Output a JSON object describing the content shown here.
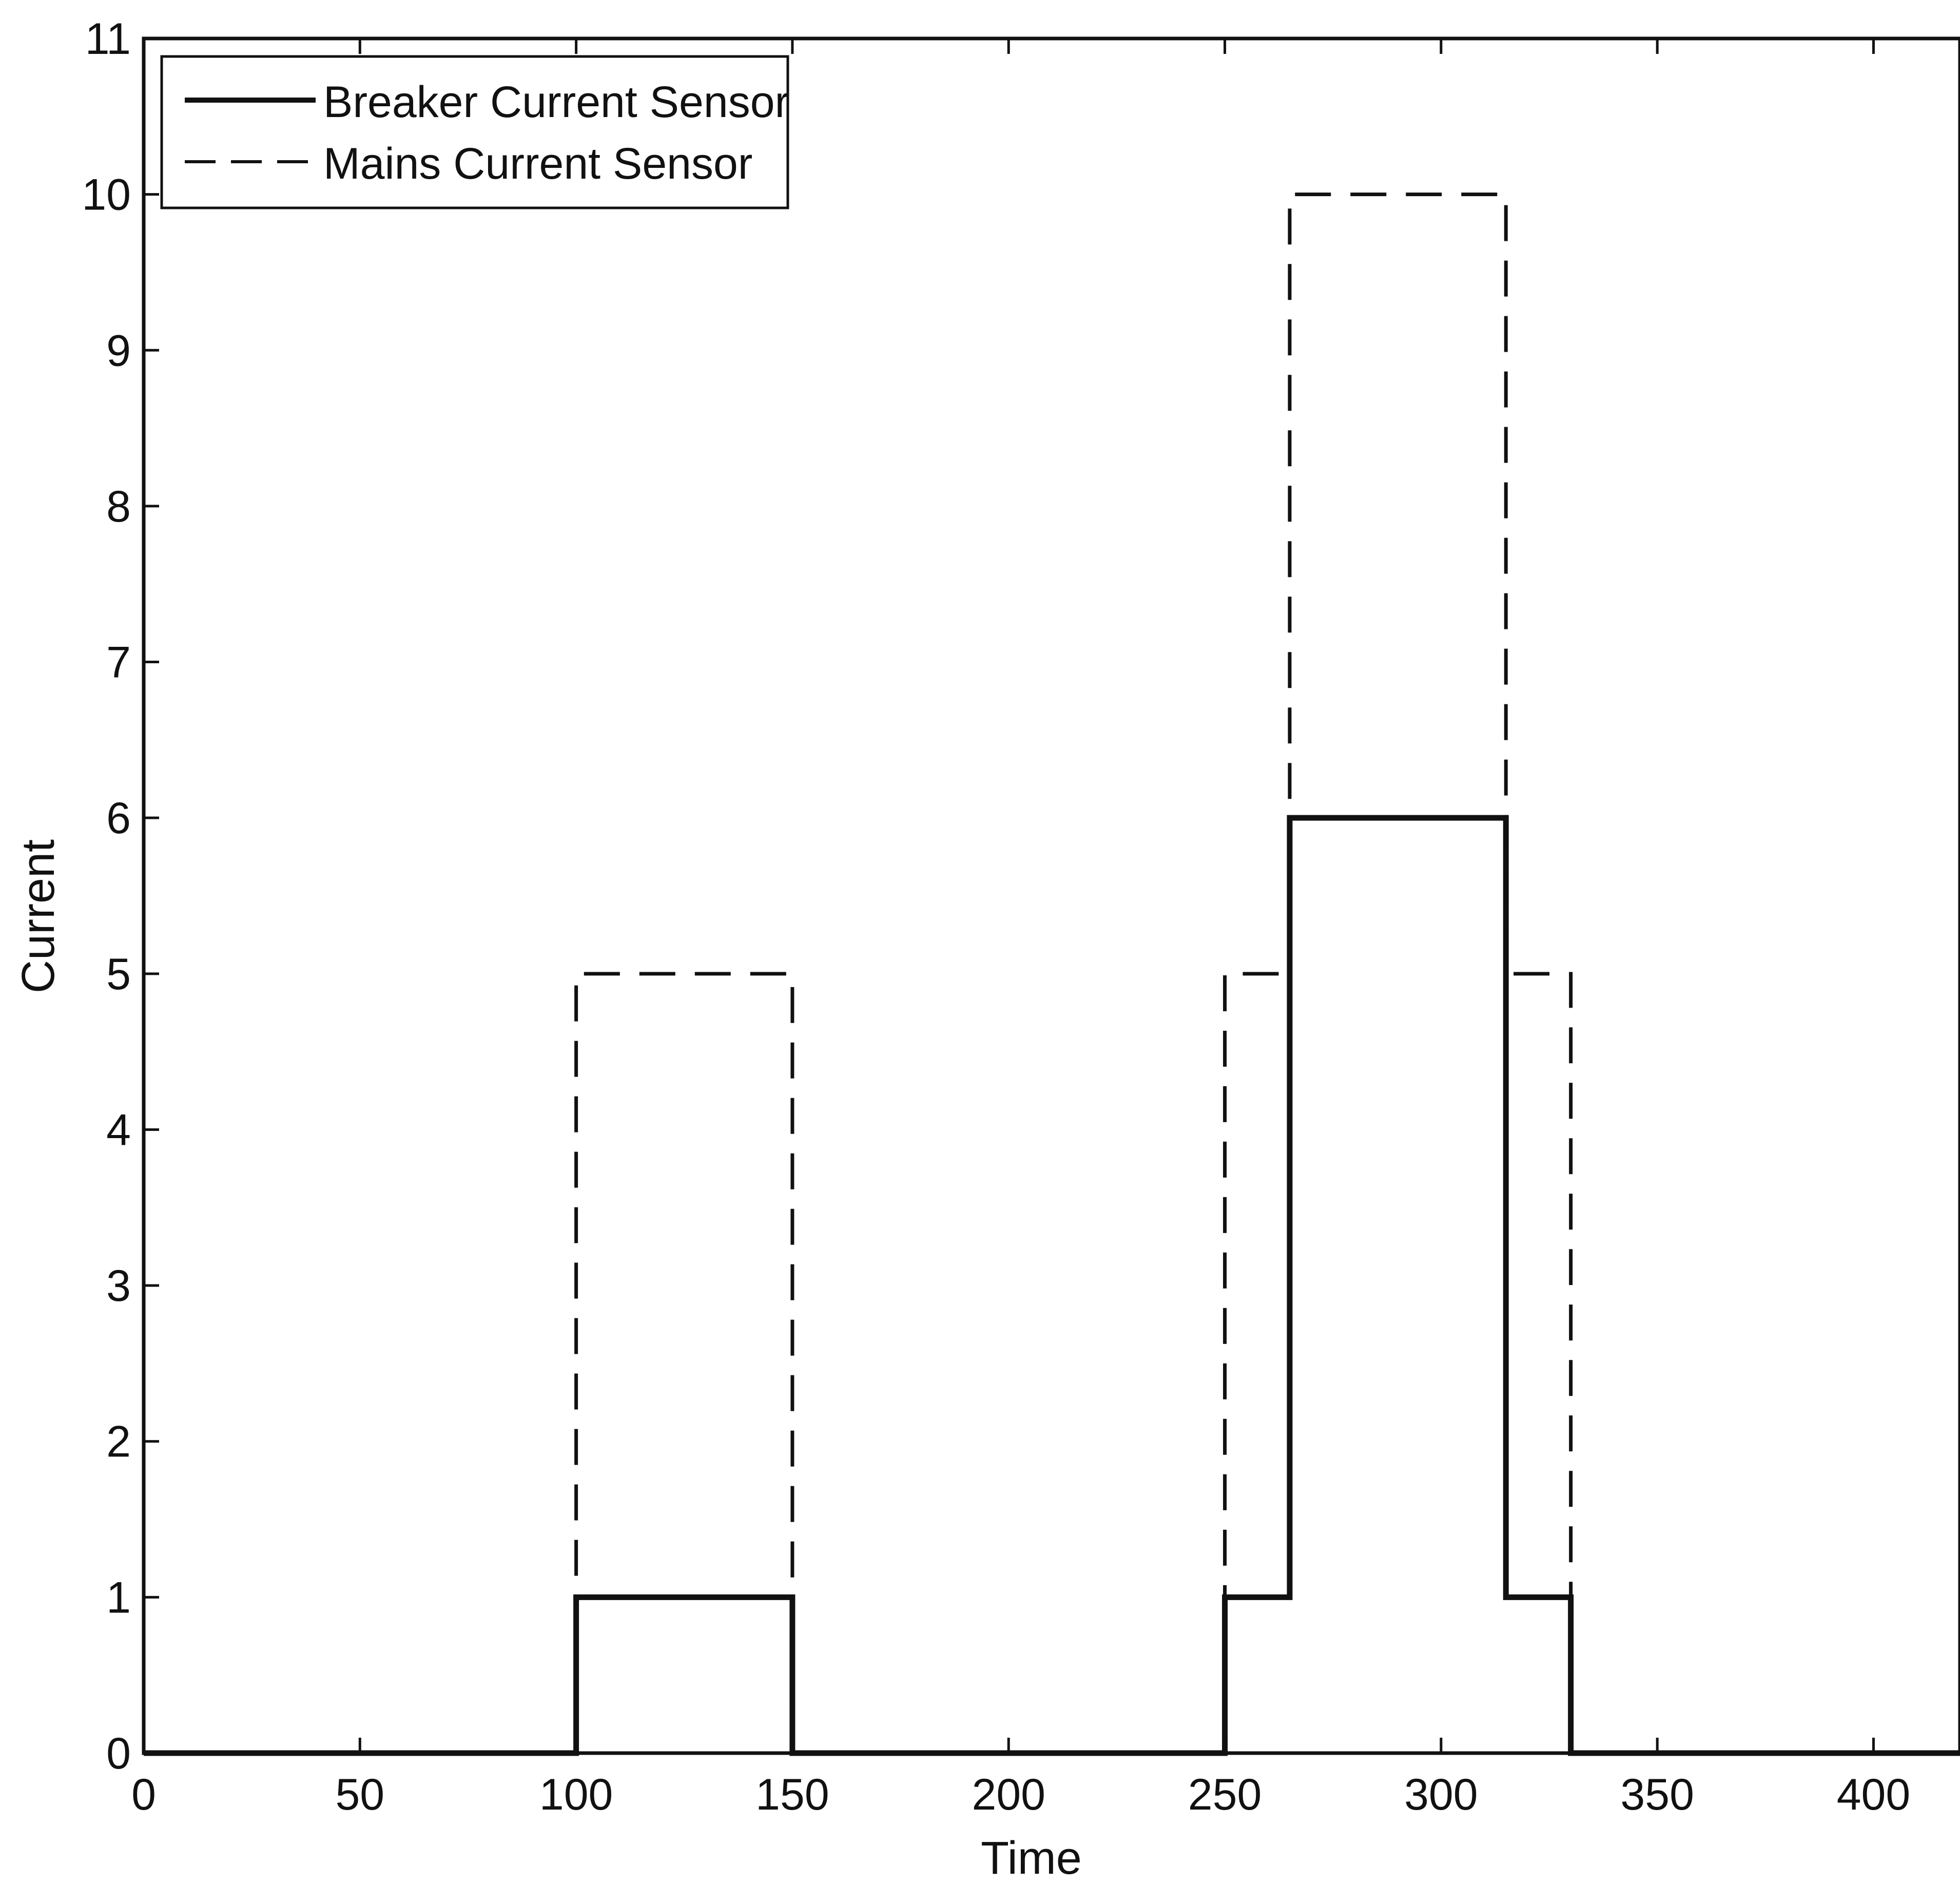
{
  "chart_data": {
    "type": "line",
    "title": "",
    "xlabel": "Time",
    "ylabel": "Current",
    "xlim": [
      0,
      420
    ],
    "ylim": [
      0,
      11
    ],
    "xticks": [
      0,
      50,
      100,
      150,
      200,
      250,
      300,
      350,
      400
    ],
    "yticks": [
      0,
      1,
      2,
      3,
      4,
      5,
      6,
      7,
      8,
      9,
      10,
      11
    ],
    "grid": false,
    "legend_position": "top-left",
    "series": [
      {
        "name": "Breaker Current Sensor",
        "style": "solid",
        "color": "#111111",
        "x": [
          0,
          100,
          100,
          150,
          150,
          250,
          250,
          265,
          265,
          315,
          315,
          330,
          330,
          420
        ],
        "y": [
          0,
          0,
          1,
          1,
          0,
          0,
          1,
          1,
          6,
          6,
          1,
          1,
          0,
          0
        ]
      },
      {
        "name": "Mains Current Sensor",
        "style": "dashed",
        "color": "#111111",
        "x": [
          0,
          100,
          100,
          150,
          150,
          250,
          250,
          265,
          265,
          315,
          315,
          330,
          330,
          420
        ],
        "y": [
          0,
          0,
          5,
          5,
          0,
          0,
          5,
          5,
          10,
          10,
          5,
          5,
          0,
          0
        ]
      }
    ]
  }
}
